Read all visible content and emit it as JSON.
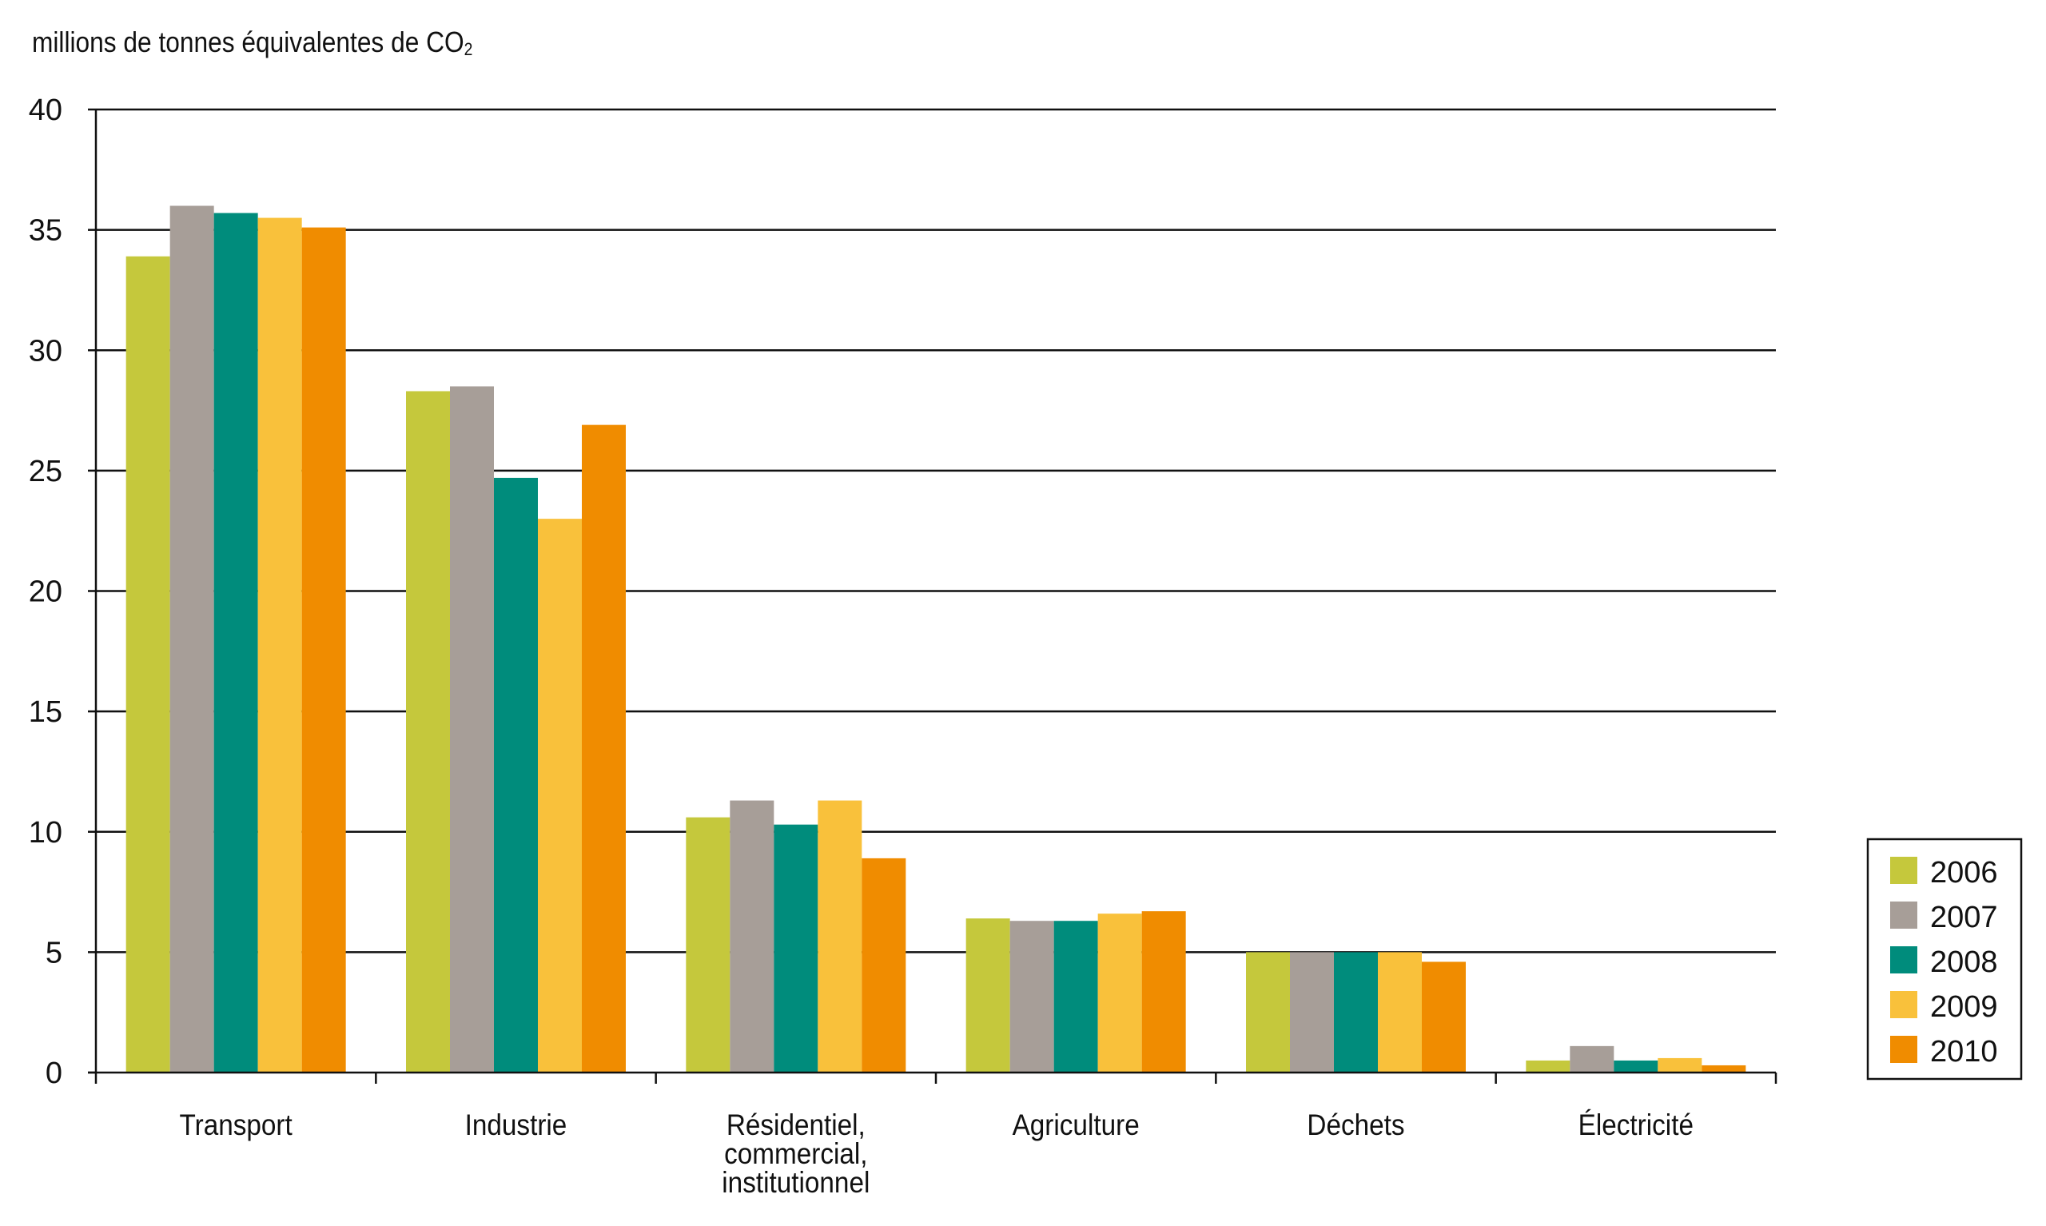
{
  "chart_data": {
    "type": "bar",
    "ylabel": "millions de tonnes équivalentes de CO",
    "ylabel_subscript": "2",
    "ylim": [
      0,
      40
    ],
    "yticks": [
      0,
      5,
      10,
      15,
      20,
      25,
      30,
      35,
      40
    ],
    "grid": true,
    "legend_position": "right-bottom",
    "categories": [
      [
        "Transport"
      ],
      [
        "Industrie"
      ],
      [
        "Résidentiel,",
        "commercial,",
        "institutionnel"
      ],
      [
        "Agriculture"
      ],
      [
        "Déchets"
      ],
      [
        "Électricité"
      ]
    ],
    "series": [
      {
        "name": "2006",
        "color": "#c5c83c",
        "values": [
          33.9,
          28.3,
          10.6,
          6.4,
          5.0,
          0.5
        ]
      },
      {
        "name": "2007",
        "color": "#a79e98",
        "values": [
          36.0,
          28.5,
          11.3,
          6.3,
          5.0,
          1.1
        ]
      },
      {
        "name": "2008",
        "color": "#008c7c",
        "values": [
          35.7,
          24.7,
          10.3,
          6.3,
          5.0,
          0.5
        ]
      },
      {
        "name": "2009",
        "color": "#f9c13b",
        "values": [
          35.5,
          23.0,
          11.3,
          6.6,
          5.0,
          0.6
        ]
      },
      {
        "name": "2010",
        "color": "#f08c00",
        "values": [
          35.1,
          26.9,
          8.9,
          6.7,
          4.6,
          0.3
        ]
      }
    ]
  }
}
